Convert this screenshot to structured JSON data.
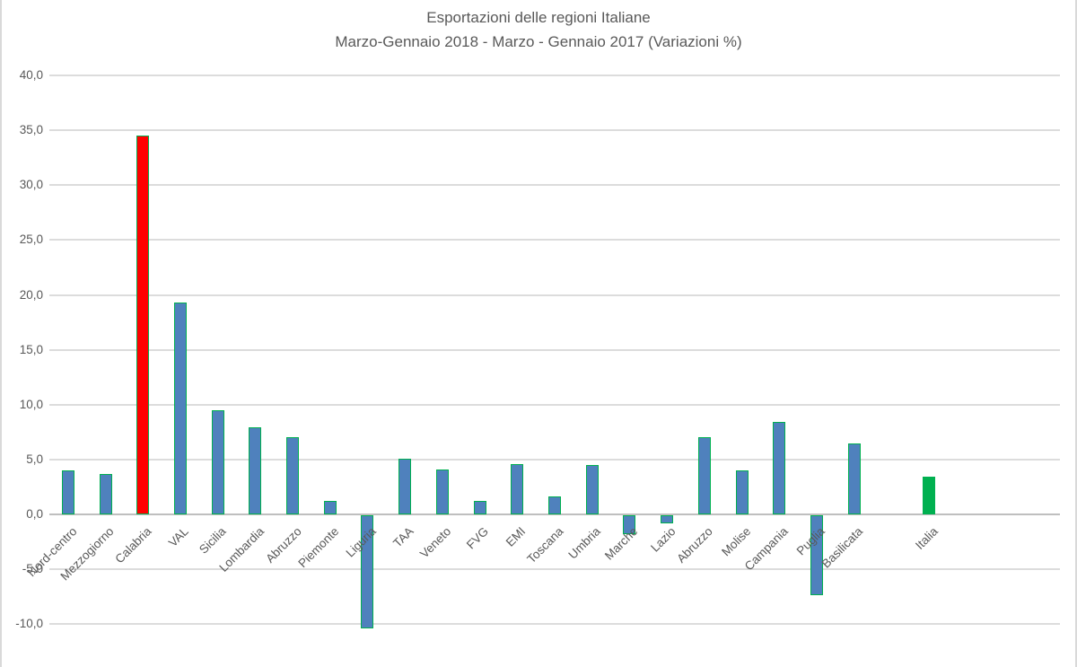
{
  "title_line1": "Esportazioni delle regioni Italiane",
  "title_line2": "Marzo-Gennaio 2018 - Marzo - Gennaio 2017 (Variazioni %)",
  "chart_data": {
    "type": "bar",
    "title": "Esportazioni delle regioni Italiane",
    "subtitle": "Marzo-Gennaio 2018 - Marzo - Gennaio 2017 (Variazioni %)",
    "xlabel": "",
    "ylabel": "",
    "ylim": [
      -10,
      40
    ],
    "ytick_step": 5,
    "grid": true,
    "legend": false,
    "number_format": "decimal-comma",
    "colors": {
      "bar_fill": "#4f81bd",
      "bar_border": "#00b050",
      "highlight_red": "#ff0000",
      "italia_green": "#00b050",
      "gridline": "#dcdcdc",
      "axis_line": "#bfbfbf",
      "text": "#595959"
    },
    "yticks": [
      {
        "value": 40,
        "label": "40,0"
      },
      {
        "value": 35,
        "label": "35,0"
      },
      {
        "value": 30,
        "label": "30,0"
      },
      {
        "value": 25,
        "label": "25,0"
      },
      {
        "value": 20,
        "label": "20,0"
      },
      {
        "value": 15,
        "label": "15,0"
      },
      {
        "value": 10,
        "label": "10,0"
      },
      {
        "value": 5,
        "label": "5,0"
      },
      {
        "value": 0,
        "label": "0,0"
      },
      {
        "value": -5,
        "label": "-5,0"
      },
      {
        "value": -10,
        "label": "-10,0"
      }
    ],
    "bars": [
      {
        "label": "Nord-centro",
        "value": 4.0
      },
      {
        "label": "Mezzogiorno",
        "value": 3.7
      },
      {
        "label": "Calabria",
        "value": 34.5,
        "fill": "#ff0000"
      },
      {
        "label": "VAL",
        "value": 19.3
      },
      {
        "label": "Sicilia",
        "value": 9.5
      },
      {
        "label": "Lombardia",
        "value": 7.9
      },
      {
        "label": "Abruzzo",
        "value": 7.0
      },
      {
        "label": "Piemonte",
        "value": 1.2
      },
      {
        "label": "Liguria",
        "value": -10.3
      },
      {
        "label": "TAA",
        "value": 5.1
      },
      {
        "label": "Veneto",
        "value": 4.1
      },
      {
        "label": "FVG",
        "value": 1.2
      },
      {
        "label": "EMI",
        "value": 4.6
      },
      {
        "label": "Toscana",
        "value": 1.6
      },
      {
        "label": "Umbria",
        "value": 4.5
      },
      {
        "label": "Marche",
        "value": -1.7
      },
      {
        "label": "Lazio",
        "value": -0.7
      },
      {
        "label": "Abruzzo",
        "value": 7.0
      },
      {
        "label": "Molise",
        "value": 4.0
      },
      {
        "label": "Campania",
        "value": 8.4
      },
      {
        "label": "Puglia",
        "value": -7.3
      },
      {
        "label": "Basilicata",
        "value": 6.5
      },
      {
        "label": "",
        "value": null
      },
      {
        "label": "Italia",
        "value": 3.4,
        "fill": "#00b050"
      },
      {
        "label": "",
        "value": null
      },
      {
        "label": "",
        "value": null
      },
      {
        "label": "",
        "value": null
      }
    ]
  }
}
